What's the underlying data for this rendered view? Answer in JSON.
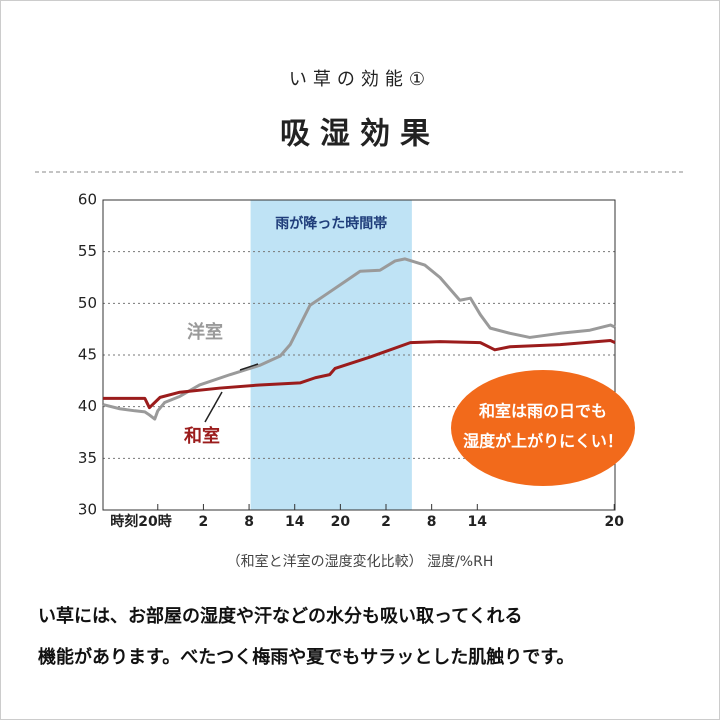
{
  "header": {
    "kicker": "い草の効能①",
    "title": "吸湿効果"
  },
  "chart_data": {
    "type": "line",
    "ylim": [
      30,
      60
    ],
    "yticks": [
      30,
      35,
      40,
      45,
      50,
      55,
      60
    ],
    "grid": true,
    "xlim": [
      -7.2,
      60.1
    ],
    "xticks": [
      {
        "value": 0,
        "label": "時刻20時"
      },
      {
        "value": 6,
        "label": "2"
      },
      {
        "value": 12,
        "label": "8"
      },
      {
        "value": 18,
        "label": "14"
      },
      {
        "value": 24,
        "label": "20"
      },
      {
        "value": 30,
        "label": "2"
      },
      {
        "value": 36,
        "label": "8"
      },
      {
        "value": 42,
        "label": "14"
      },
      {
        "value": 60,
        "label": "20"
      }
    ],
    "rain_band": {
      "label": "雨が降った時間帯",
      "from": 12.2,
      "to": 33.4,
      "color": "#bfe3f5"
    },
    "series": [
      {
        "name": "洋室",
        "color": "#9a9a9a",
        "x": [
          -7.2,
          -5.0,
          -3.0,
          -1.7,
          -1.1,
          -0.4,
          0,
          0.9,
          2.9,
          5.5,
          9.5,
          13.4,
          16.1,
          17.4,
          18.7,
          20.0,
          22.0,
          24.6,
          26.6,
          29.2,
          31.2,
          32.5,
          35.1,
          37.1,
          39.7,
          41.1,
          42.4,
          43.7,
          46.3,
          48.9,
          52.9,
          56.8,
          59.5,
          60.1
        ],
        "values": [
          40.2,
          39.8,
          39.6,
          39.5,
          39.2,
          38.8,
          39.6,
          40.4,
          41.0,
          42.1,
          43.1,
          44.0,
          44.9,
          46.0,
          47.9,
          49.8,
          50.8,
          52.1,
          53.1,
          53.2,
          54.1,
          54.3,
          53.7,
          52.5,
          50.3,
          50.5,
          48.9,
          47.6,
          47.1,
          46.7,
          47.1,
          47.4,
          47.9,
          47.7
        ]
      },
      {
        "name": "和室",
        "color": "#9b1c1c",
        "x": [
          -7.2,
          -1.7,
          -1.1,
          0.3,
          2.9,
          8.2,
          13.4,
          18.7,
          20.7,
          22.6,
          23.3,
          27.9,
          33.2,
          37.1,
          42.4,
          44.3,
          46.3,
          52.9,
          59.5,
          60.1
        ],
        "values": [
          40.8,
          40.8,
          39.9,
          40.9,
          41.4,
          41.8,
          42.1,
          42.3,
          42.8,
          43.1,
          43.7,
          44.8,
          46.2,
          46.3,
          46.2,
          45.5,
          45.8,
          46.0,
          46.4,
          46.2
        ]
      }
    ],
    "callout": [
      "和室は雨の日でも",
      "湿度が上がりにくい！"
    ],
    "callout_color": "#f26a1b"
  },
  "caption": "（和室と洋室の湿度変化比較） 湿度/%RH",
  "body": [
    "い草には、お部屋の湿度や汗などの水分も吸い取ってくれる",
    "機能があります。べたつく梅雨や夏でもサラッとした肌触りです。"
  ]
}
